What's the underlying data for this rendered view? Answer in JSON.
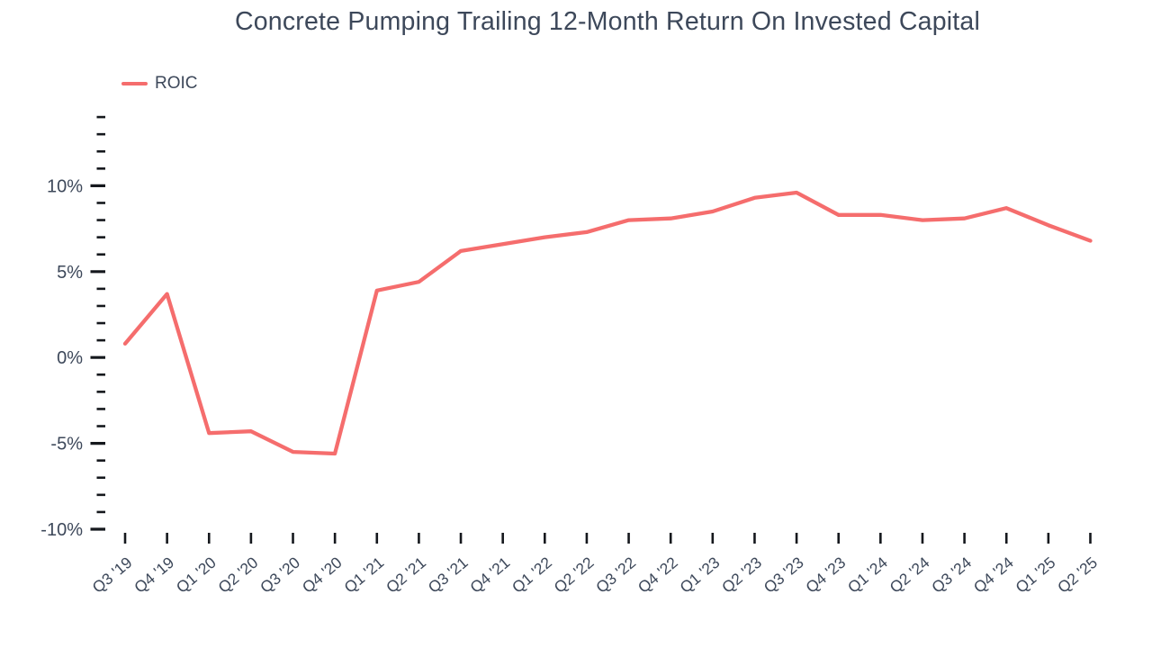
{
  "title": "Concrete Pumping Trailing 12-Month Return On Invested Capital",
  "legend": {
    "items": [
      {
        "label": "ROIC",
        "color": "#f56d6d"
      }
    ]
  },
  "chart_data": {
    "type": "line",
    "title": "Concrete Pumping Trailing 12-Month Return On Invested Capital",
    "categories": [
      "Q3 '19",
      "Q4 '19",
      "Q1 '20",
      "Q2 '20",
      "Q3 '20",
      "Q4 '20",
      "Q1 '21",
      "Q2 '21",
      "Q3 '21",
      "Q4 '21",
      "Q1 '22",
      "Q2 '22",
      "Q3 '22",
      "Q4 '22",
      "Q1 '23",
      "Q2 '23",
      "Q3 '23",
      "Q4 '23",
      "Q1 '24",
      "Q2 '24",
      "Q3 '24",
      "Q4 '24",
      "Q1 '25",
      "Q2 '25"
    ],
    "series": [
      {
        "name": "ROIC",
        "color": "#f56d6d",
        "values": [
          0.8,
          3.7,
          -4.4,
          -4.3,
          -5.5,
          -5.6,
          3.9,
          4.4,
          6.2,
          6.6,
          7.0,
          7.3,
          8.0,
          8.1,
          8.5,
          9.3,
          9.6,
          8.3,
          8.3,
          8.0,
          8.1,
          8.7,
          7.7,
          6.8
        ]
      }
    ],
    "unit": "%",
    "xlabel": "",
    "ylabel": "",
    "ylim": [
      -10,
      14
    ],
    "y_major_ticks": [
      {
        "value": -10,
        "label": "-10%"
      },
      {
        "value": -5,
        "label": "-5%"
      },
      {
        "value": 0,
        "label": "0%"
      },
      {
        "value": 5,
        "label": "5%"
      },
      {
        "value": 10,
        "label": "10%"
      }
    ],
    "y_minor_step": 1,
    "grid": false,
    "legend_position": "top-left"
  },
  "colors": {
    "text": "#3d485a",
    "axis_tick": "#15181d",
    "background": "#ffffff",
    "series": "#f56d6d"
  }
}
